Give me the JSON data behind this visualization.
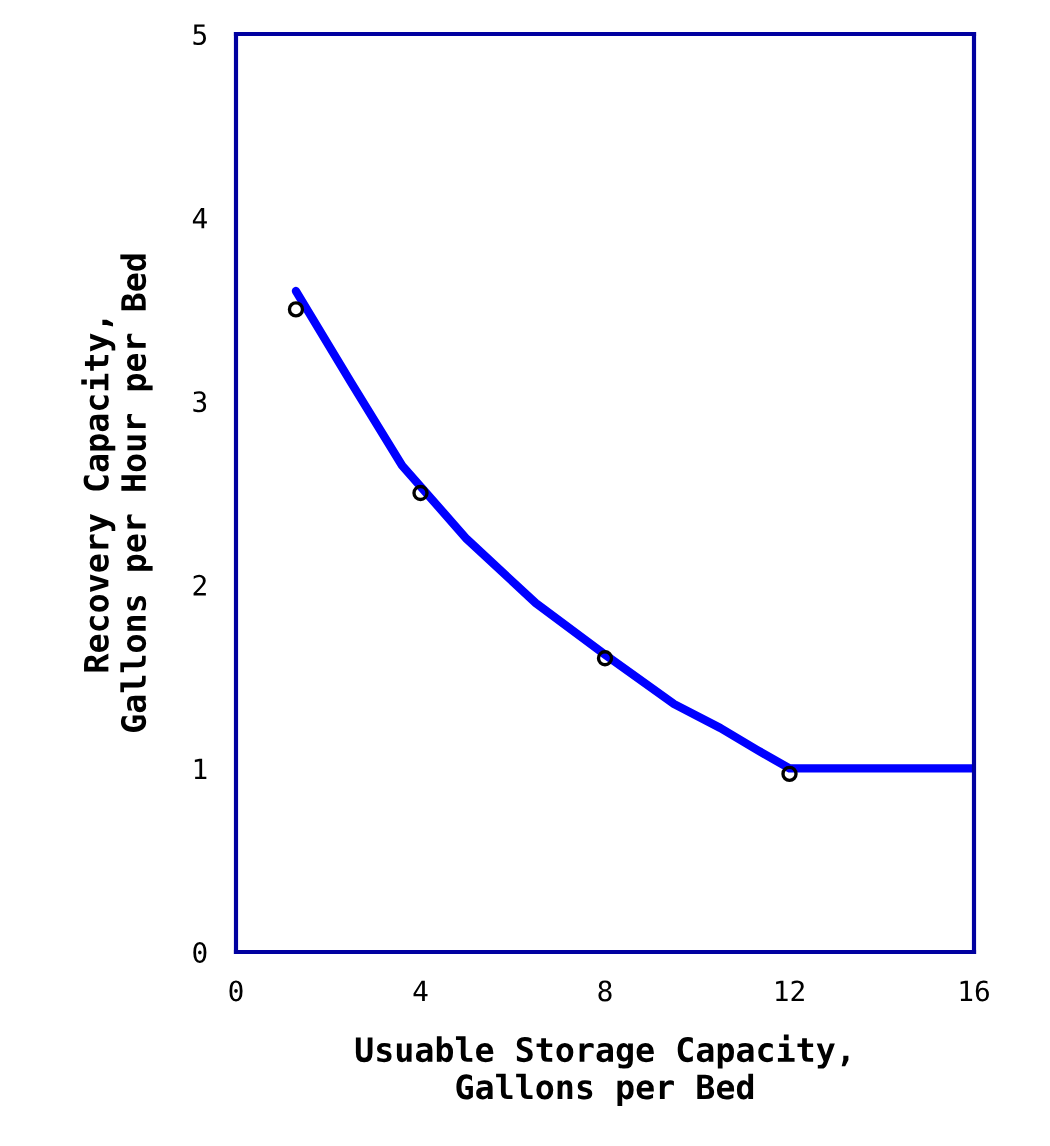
{
  "chart_data": {
    "type": "line",
    "xlabel": "Usuable Storage Capacity,\nGallons per Bed",
    "ylabel": "Recovery Capacity,\nGallons per Hour per Bed",
    "series": [
      {
        "color": "#0000ff",
        "x": [
          1.3,
          2.5,
          3.6,
          5,
          6.5,
          8,
          9.5,
          10.5,
          11.3,
          12,
          16
        ],
        "values": [
          3.6,
          3.1,
          2.65,
          2.25,
          1.9,
          1.62,
          1.35,
          1.22,
          1.1,
          1.0,
          1.0
        ]
      },
      {
        "type": "scatter",
        "color": "#000000",
        "x": [
          1.3,
          4,
          8,
          12
        ],
        "values": [
          3.5,
          2.5,
          1.6,
          0.97
        ]
      }
    ],
    "xlim": [
      0,
      16
    ],
    "xticks": [
      0,
      4,
      8,
      12,
      16
    ],
    "ylim": [
      0,
      5
    ],
    "yticks": [
      0,
      1,
      2,
      3,
      4,
      5
    ],
    "grid": false,
    "legend": false
  }
}
